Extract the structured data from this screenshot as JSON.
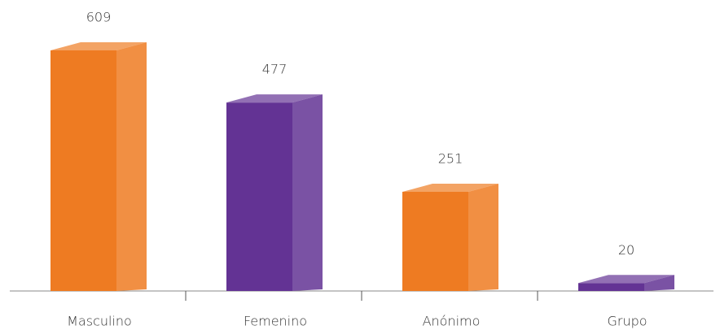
{
  "chart_data": {
    "type": "bar3d",
    "categories": [
      "Masculino",
      "Femenino",
      "Anónimo",
      "Grupo"
    ],
    "values": [
      609,
      477,
      251,
      20
    ],
    "colors": [
      "#ee7b22",
      "#633394",
      "#ee7b22",
      "#633394"
    ]
  }
}
